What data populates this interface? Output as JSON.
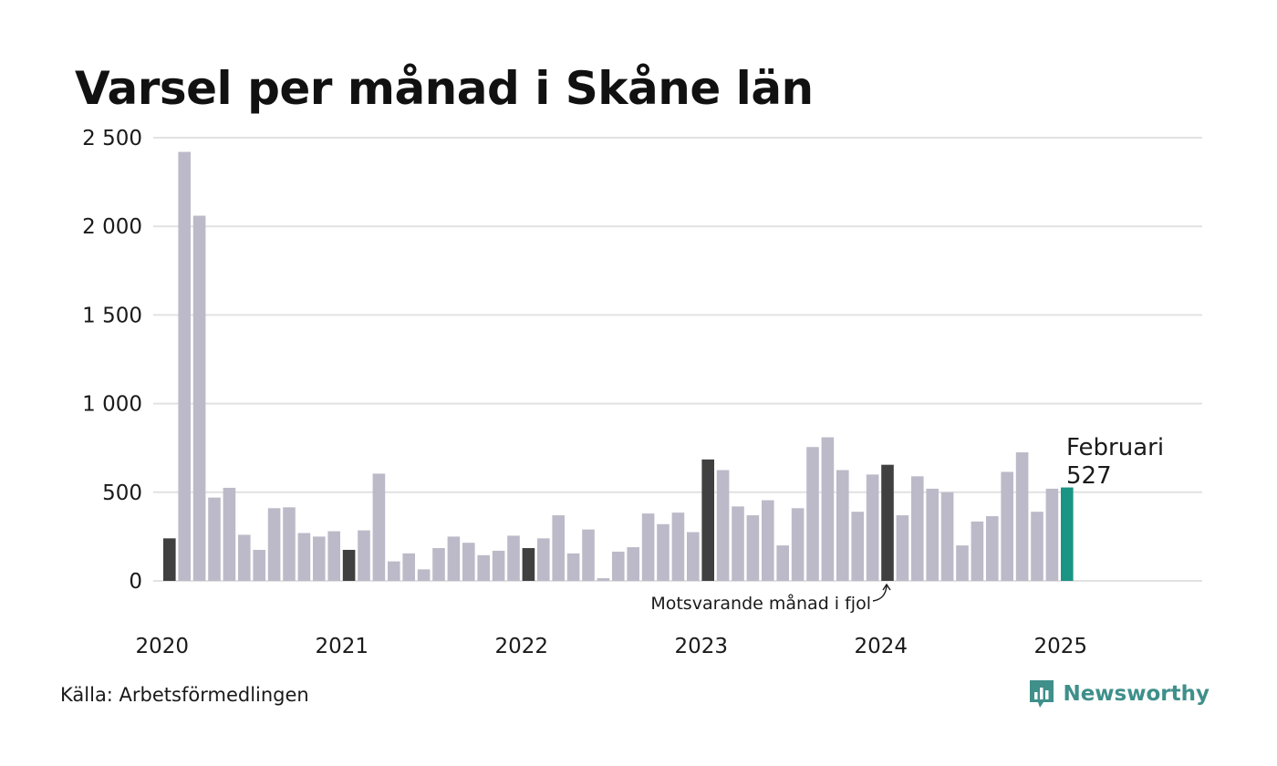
{
  "title": "Varsel per månad i Skåne län",
  "source": "Källa: Arbetsförmedlingen",
  "brand": {
    "name": "Newsworthy",
    "logo_icon": "bar-chart-speech-bubble-icon",
    "color": "#3f8f8a"
  },
  "colors": {
    "default_bar": "#bcbac8",
    "same_month_bar": "#404040",
    "current_bar": "#1a9485",
    "grid": "#e2e2e2"
  },
  "chart_data": {
    "type": "bar",
    "title": "Varsel per månad i Skåne län",
    "xlabel": "",
    "ylabel": "",
    "ylim": [
      0,
      2500
    ],
    "yticks": [
      0,
      500,
      1000,
      1500,
      2000,
      2500
    ],
    "ytick_labels": [
      "0",
      "500",
      "1 000",
      "1 500",
      "2 000",
      "2 500"
    ],
    "grid": true,
    "start": "2020-02",
    "end": "2025-02",
    "year_labels": [
      "2020",
      "2021",
      "2022",
      "2023",
      "2024",
      "2025"
    ],
    "values": [
      240,
      2420,
      2060,
      470,
      525,
      260,
      175,
      410,
      415,
      270,
      250,
      280,
      175,
      285,
      605,
      110,
      155,
      65,
      185,
      250,
      215,
      145,
      170,
      255,
      185,
      240,
      370,
      155,
      290,
      15,
      165,
      190,
      380,
      320,
      385,
      275,
      685,
      625,
      420,
      370,
      455,
      200,
      410,
      755,
      810,
      625,
      390,
      600,
      655,
      370,
      590,
      520,
      500,
      200,
      335,
      365,
      615,
      725,
      390,
      520,
      527
    ],
    "highlight_indices": [
      0,
      12,
      24,
      36,
      48
    ],
    "current_index": 60,
    "highlight_label": "Februari",
    "highlight_value_label": "527",
    "annotation": "Motsvarande månad i fjol"
  }
}
